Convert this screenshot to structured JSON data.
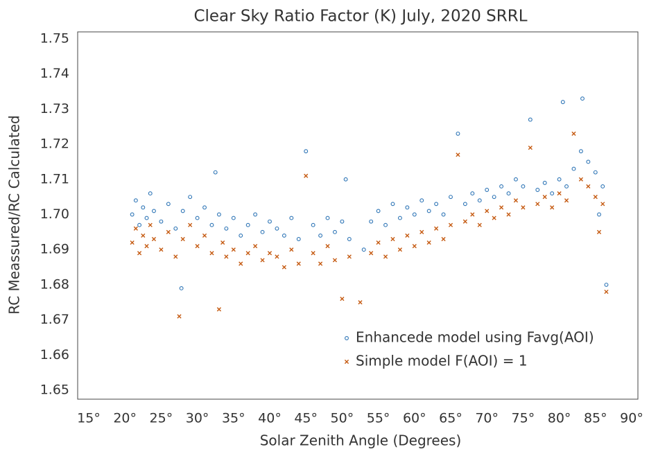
{
  "chart_data": {
    "type": "scatter",
    "title": "Clear Sky Ratio Factor (K) July, 2020 SRRL",
    "x_label": "Solar Zenith Angle (Degrees)",
    "y_label": "RC Meassured/RC Calculated",
    "xlim": [
      15,
      90
    ],
    "xticks": [
      {
        "value": 15,
        "label": "15°"
      },
      {
        "value": 20,
        "label": "20°"
      },
      {
        "value": 25,
        "label": "25°"
      },
      {
        "value": 30,
        "label": "30°"
      },
      {
        "value": 35,
        "label": "35°"
      },
      {
        "value": 40,
        "label": "40°"
      },
      {
        "value": 45,
        "label": "45°"
      },
      {
        "value": 50,
        "label": "50°"
      },
      {
        "value": 55,
        "label": "55°"
      },
      {
        "value": 60,
        "label": "60°"
      },
      {
        "value": 65,
        "label": "65°"
      },
      {
        "value": 70,
        "label": "70°"
      },
      {
        "value": 75,
        "label": "75°"
      },
      {
        "value": 80,
        "label": "80°"
      },
      {
        "value": 85,
        "label": "85°"
      },
      {
        "value": 90,
        "label": "90°"
      }
    ],
    "ylim": [
      1.65,
      1.75
    ],
    "yticks": [
      1.65,
      1.66,
      1.67,
      1.68,
      1.69,
      {
        "value": 1.7,
        "label": "1.70"
      },
      1.71,
      1.72,
      1.73,
      1.74,
      1.75
    ],
    "legend": "lower-right",
    "series": [
      {
        "name": "Enhancede model using Favg(AOI)",
        "color": "#2e75b6",
        "marker": "circle",
        "x": [
          21,
          21.5,
          22,
          22.5,
          23,
          23.5,
          24,
          25,
          26,
          27,
          27.8,
          28,
          29,
          30,
          31,
          32,
          32.5,
          33,
          34,
          35,
          36,
          37,
          38,
          39,
          40,
          41,
          42,
          43,
          44,
          45,
          46,
          47,
          48,
          49,
          50,
          50.5,
          51,
          53,
          54,
          55,
          56,
          57,
          58,
          59,
          60,
          61,
          62,
          63,
          64,
          65,
          66,
          67,
          68,
          69,
          70,
          71,
          72,
          73,
          74,
          75,
          76,
          77,
          78,
          79,
          80,
          80.5,
          81,
          82,
          83,
          83.2,
          84,
          85,
          85.5,
          86,
          86.5
        ],
        "values": [
          1.7,
          1.704,
          1.697,
          1.702,
          1.699,
          1.706,
          1.701,
          1.698,
          1.703,
          1.696,
          1.679,
          1.701,
          1.705,
          1.699,
          1.702,
          1.697,
          1.712,
          1.7,
          1.696,
          1.699,
          1.694,
          1.697,
          1.7,
          1.695,
          1.698,
          1.696,
          1.694,
          1.699,
          1.693,
          1.718,
          1.697,
          1.694,
          1.699,
          1.695,
          1.698,
          1.71,
          1.693,
          1.69,
          1.698,
          1.701,
          1.697,
          1.703,
          1.699,
          1.702,
          1.7,
          1.704,
          1.701,
          1.703,
          1.7,
          1.705,
          1.723,
          1.703,
          1.706,
          1.704,
          1.707,
          1.705,
          1.708,
          1.706,
          1.71,
          1.708,
          1.727,
          1.707,
          1.709,
          1.706,
          1.71,
          1.732,
          1.708,
          1.713,
          1.718,
          1.733,
          1.715,
          1.712,
          1.7,
          1.708,
          1.68
        ]
      },
      {
        "name": "Simple model F(AOI) = 1",
        "color": "#c55a11",
        "marker": "x",
        "x": [
          21,
          21.5,
          22,
          22.5,
          23,
          23.5,
          24,
          25,
          26,
          27,
          27.5,
          28,
          29,
          30,
          31,
          32,
          33,
          33.5,
          34,
          35,
          36,
          37,
          38,
          39,
          40,
          41,
          42,
          43,
          44,
          45,
          46,
          47,
          48,
          49,
          50,
          51,
          52.5,
          54,
          55,
          56,
          57,
          58,
          59,
          60,
          61,
          62,
          63,
          64,
          65,
          66,
          67,
          68,
          69,
          70,
          71,
          72,
          73,
          74,
          75,
          76,
          77,
          78,
          79,
          80,
          81,
          82,
          83,
          84,
          85,
          85.5,
          86,
          86.5
        ],
        "values": [
          1.692,
          1.696,
          1.689,
          1.694,
          1.691,
          1.697,
          1.693,
          1.69,
          1.695,
          1.688,
          1.671,
          1.693,
          1.697,
          1.691,
          1.694,
          1.689,
          1.673,
          1.692,
          1.688,
          1.69,
          1.686,
          1.689,
          1.691,
          1.687,
          1.689,
          1.688,
          1.685,
          1.69,
          1.686,
          1.711,
          1.689,
          1.686,
          1.691,
          1.687,
          1.676,
          1.688,
          1.675,
          1.689,
          1.692,
          1.688,
          1.693,
          1.69,
          1.694,
          1.691,
          1.695,
          1.692,
          1.696,
          1.693,
          1.697,
          1.717,
          1.698,
          1.7,
          1.697,
          1.701,
          1.699,
          1.702,
          1.7,
          1.704,
          1.702,
          1.719,
          1.703,
          1.705,
          1.702,
          1.706,
          1.704,
          1.723,
          1.71,
          1.708,
          1.705,
          1.695,
          1.703,
          1.678
        ]
      }
    ]
  }
}
